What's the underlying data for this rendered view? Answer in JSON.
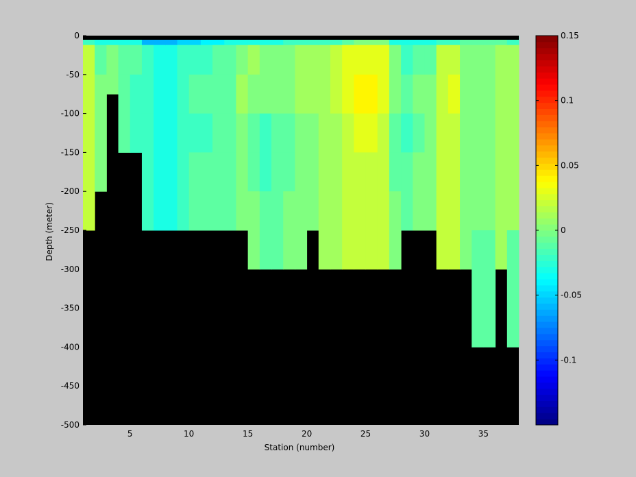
{
  "chart_data": {
    "type": "heatmap",
    "xlabel": "Station (number)",
    "ylabel": "Depth (meter)",
    "xlim": [
      1,
      38
    ],
    "ylim": [
      -500,
      0
    ],
    "xticks": [
      5,
      10,
      15,
      20,
      25,
      30,
      35
    ],
    "yticks": [
      0,
      -50,
      -100,
      -150,
      -200,
      -250,
      -300,
      -350,
      -400,
      -450,
      -500
    ],
    "colorbar": {
      "range": [
        -0.15,
        0.15
      ],
      "ticks": [
        0.15,
        0.1,
        0.05,
        0,
        -0.05,
        -0.1
      ],
      "colormap": "jet",
      "low_color": "#0000ff",
      "high_color": "#800000"
    },
    "station_bottom_depth": [
      {
        "station": 1,
        "bottom": -250
      },
      {
        "station": 2,
        "bottom": -200
      },
      {
        "station": 3,
        "bottom": -75
      },
      {
        "station": 4,
        "bottom": -150
      },
      {
        "station": 5,
        "bottom": -150
      },
      {
        "station": 6,
        "bottom": -250
      },
      {
        "station": 7,
        "bottom": -250
      },
      {
        "station": 8,
        "bottom": -250
      },
      {
        "station": 9,
        "bottom": -250
      },
      {
        "station": 10,
        "bottom": -250
      },
      {
        "station": 11,
        "bottom": -250
      },
      {
        "station": 12,
        "bottom": -250
      },
      {
        "station": 13,
        "bottom": -250
      },
      {
        "station": 14,
        "bottom": -250
      },
      {
        "station": 15,
        "bottom": -300
      },
      {
        "station": 16,
        "bottom": -300
      },
      {
        "station": 17,
        "bottom": -300
      },
      {
        "station": 18,
        "bottom": -300
      },
      {
        "station": 19,
        "bottom": -300
      },
      {
        "station": 20,
        "bottom": -250
      },
      {
        "station": 21,
        "bottom": -300
      },
      {
        "station": 22,
        "bottom": -300
      },
      {
        "station": 23,
        "bottom": -300
      },
      {
        "station": 24,
        "bottom": -300
      },
      {
        "station": 25,
        "bottom": -300
      },
      {
        "station": 26,
        "bottom": -300
      },
      {
        "station": 27,
        "bottom": -300
      },
      {
        "station": 28,
        "bottom": -250
      },
      {
        "station": 29,
        "bottom": -250
      },
      {
        "station": 30,
        "bottom": -250
      },
      {
        "station": 31,
        "bottom": -300
      },
      {
        "station": 32,
        "bottom": -300
      },
      {
        "station": 33,
        "bottom": -300
      },
      {
        "station": 34,
        "bottom": -400
      },
      {
        "station": 35,
        "bottom": -400
      },
      {
        "station": 36,
        "bottom": -300
      },
      {
        "station": 37,
        "bottom": -400
      }
    ],
    "values": [
      {
        "station": 1,
        "profile": [
          -0.02,
          0.02,
          0.02,
          0.02,
          0.02
        ]
      },
      {
        "station": 2,
        "profile": [
          -0.03,
          -0.01,
          0.0
        ]
      },
      {
        "station": 3,
        "profile": [
          -0.03,
          0.0
        ]
      },
      {
        "station": 4,
        "profile": [
          -0.03,
          -0.01,
          -0.01
        ]
      },
      {
        "station": 5,
        "profile": [
          -0.03,
          -0.01,
          -0.02
        ]
      },
      {
        "station": 6,
        "profile": [
          -0.06,
          -0.02,
          -0.02,
          -0.02,
          -0.02
        ]
      },
      {
        "station": 7,
        "profile": [
          -0.06,
          -0.03,
          -0.03,
          -0.03,
          -0.03
        ]
      },
      {
        "station": 8,
        "profile": [
          -0.06,
          -0.03,
          -0.03,
          -0.03,
          -0.03
        ]
      },
      {
        "station": 9,
        "profile": [
          -0.05,
          -0.02,
          -0.02,
          -0.02,
          -0.02
        ]
      },
      {
        "station": 10,
        "profile": [
          -0.05,
          -0.02,
          -0.01,
          -0.02,
          -0.01
        ]
      },
      {
        "station": 11,
        "profile": [
          -0.04,
          -0.02,
          -0.01,
          -0.02,
          -0.01
        ]
      },
      {
        "station": 12,
        "profile": [
          -0.04,
          -0.01,
          -0.01,
          -0.01,
          -0.01
        ]
      },
      {
        "station": 13,
        "profile": [
          -0.03,
          -0.01,
          -0.01,
          -0.01,
          -0.01
        ]
      },
      {
        "station": 14,
        "profile": [
          -0.03,
          0.0,
          0.01,
          0.0,
          0.0
        ]
      },
      {
        "station": 15,
        "profile": [
          -0.03,
          0.01,
          0.0,
          -0.01,
          -0.01,
          0.0
        ]
      },
      {
        "station": 16,
        "profile": [
          -0.03,
          0.0,
          0.0,
          -0.02,
          -0.02,
          -0.01
        ]
      },
      {
        "station": 17,
        "profile": [
          -0.03,
          0.0,
          0.0,
          -0.01,
          -0.01,
          -0.01
        ]
      },
      {
        "station": 18,
        "profile": [
          -0.02,
          0.0,
          0.0,
          -0.01,
          -0.01,
          0.0
        ]
      },
      {
        "station": 19,
        "profile": [
          -0.02,
          0.01,
          0.01,
          0.0,
          0.0,
          0.0
        ]
      },
      {
        "station": 20,
        "profile": [
          -0.02,
          0.01,
          0.01,
          0.0,
          0.0
        ]
      },
      {
        "station": 21,
        "profile": [
          -0.02,
          0.01,
          0.01,
          0.01,
          0.01,
          0.01
        ]
      },
      {
        "station": 22,
        "profile": [
          -0.02,
          0.02,
          0.02,
          0.01,
          0.01,
          0.01
        ]
      },
      {
        "station": 23,
        "profile": [
          -0.01,
          0.03,
          0.03,
          0.02,
          0.02,
          0.02
        ]
      },
      {
        "station": 24,
        "profile": [
          0.0,
          0.03,
          0.04,
          0.03,
          0.02,
          0.02
        ]
      },
      {
        "station": 25,
        "profile": [
          0.0,
          0.03,
          0.04,
          0.03,
          0.02,
          0.02
        ]
      },
      {
        "station": 26,
        "profile": [
          0.0,
          0.03,
          0.03,
          0.02,
          0.02,
          0.02
        ]
      },
      {
        "station": 27,
        "profile": [
          -0.03,
          0.0,
          0.0,
          -0.01,
          -0.01,
          0.0
        ]
      },
      {
        "station": 28,
        "profile": [
          -0.03,
          -0.02,
          -0.01,
          -0.02,
          -0.01
        ]
      },
      {
        "station": 29,
        "profile": [
          -0.03,
          -0.01,
          0.0,
          -0.01,
          0.0
        ]
      },
      {
        "station": 30,
        "profile": [
          -0.03,
          -0.01,
          0.0,
          0.0,
          0.0
        ]
      },
      {
        "station": 31,
        "profile": [
          -0.02,
          0.02,
          0.02,
          0.02,
          0.02,
          0.02
        ]
      },
      {
        "station": 32,
        "profile": [
          -0.02,
          0.02,
          0.03,
          0.02,
          0.02,
          0.02
        ]
      },
      {
        "station": 33,
        "profile": [
          -0.01,
          0.0,
          0.0,
          0.0,
          0.0,
          0.0
        ]
      },
      {
        "station": 34,
        "profile": [
          -0.01,
          0.0,
          0.0,
          0.0,
          0.0,
          0.0,
          -0.01,
          -0.01
        ]
      },
      {
        "station": 35,
        "profile": [
          -0.01,
          0.0,
          0.0,
          0.0,
          0.0,
          0.0,
          -0.01,
          -0.01
        ]
      },
      {
        "station": 36,
        "profile": [
          -0.01,
          0.01,
          0.01,
          0.01,
          0.01,
          0.01
        ]
      },
      {
        "station": 37,
        "profile": [
          -0.02,
          0.01,
          0.01,
          0.01,
          0.01,
          0.01,
          -0.01,
          -0.01
        ]
      }
    ]
  }
}
